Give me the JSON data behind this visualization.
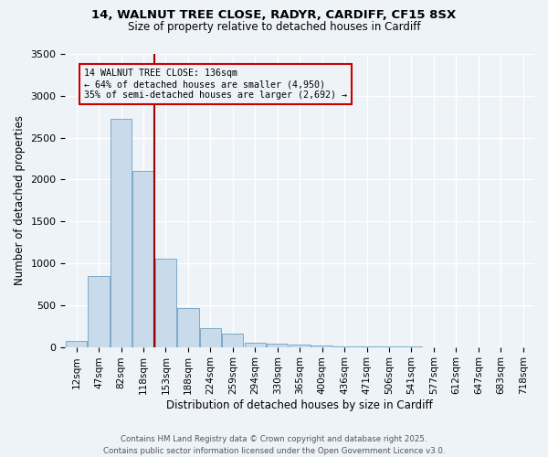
{
  "title1": "14, WALNUT TREE CLOSE, RADYR, CARDIFF, CF15 8SX",
  "title2": "Size of property relative to detached houses in Cardiff",
  "xlabel": "Distribution of detached houses by size in Cardiff",
  "ylabel": "Number of detached properties",
  "categories": [
    "12sqm",
    "47sqm",
    "82sqm",
    "118sqm",
    "153sqm",
    "188sqm",
    "224sqm",
    "259sqm",
    "294sqm",
    "330sqm",
    "365sqm",
    "400sqm",
    "436sqm",
    "471sqm",
    "506sqm",
    "541sqm",
    "577sqm",
    "612sqm",
    "647sqm",
    "683sqm",
    "718sqm"
  ],
  "values": [
    70,
    850,
    2730,
    2100,
    1050,
    460,
    230,
    160,
    55,
    40,
    30,
    20,
    10,
    5,
    3,
    2,
    1,
    1,
    0,
    0,
    0
  ],
  "bar_color": "#c9daea",
  "bar_edge_color": "#7aaac8",
  "vline_color": "#990000",
  "vline_x_index": 3.5,
  "annotation_text": "14 WALNUT TREE CLOSE: 136sqm\n← 64% of detached houses are smaller (4,950)\n35% of semi-detached houses are larger (2,692) →",
  "annotation_box_color": "#cc0000",
  "ylim": [
    0,
    3500
  ],
  "yticks": [
    0,
    500,
    1000,
    1500,
    2000,
    2500,
    3000,
    3500
  ],
  "footer1": "Contains HM Land Registry data © Crown copyright and database right 2025.",
  "footer2": "Contains public sector information licensed under the Open Government Licence v3.0.",
  "bg_color": "#eef3f8",
  "grid_color": "#ffffff"
}
